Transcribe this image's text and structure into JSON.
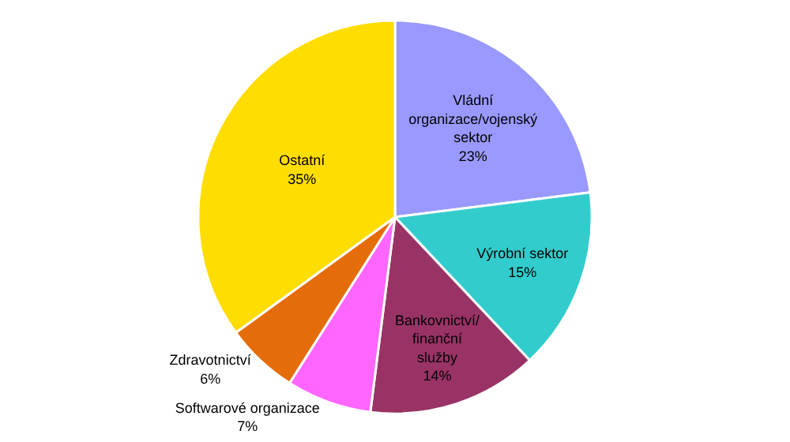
{
  "chart_data": {
    "type": "pie",
    "categories": [
      "Vládní organizace/vojenský sektor",
      "Výrobní sektor",
      "Bankovnictví/finanční služby",
      "Softwarové organizace",
      "Zdravotnictví",
      "Ostatní"
    ],
    "values": [
      23,
      15,
      14,
      7,
      6,
      35
    ],
    "colors": [
      "#9999ff",
      "#33cccc",
      "#993366",
      "#ff66ff",
      "#e46c0a",
      "#ffdd00"
    ],
    "value_labels": [
      "23%",
      "15%",
      "14%",
      "7%",
      "6%",
      "35%"
    ],
    "legend": false
  }
}
